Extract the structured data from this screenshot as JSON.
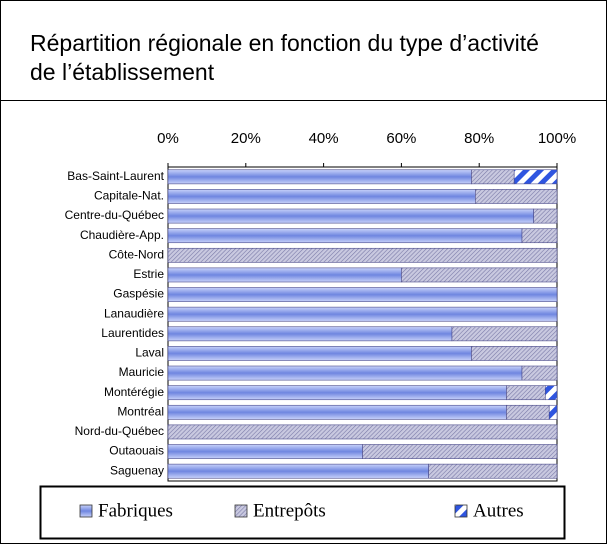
{
  "chart_data": {
    "type": "stacked_bar_horizontal",
    "title": [
      "Répartition régionale en fonction du type d’activité",
      "de l’établissement"
    ],
    "categories": [
      "Bas-Saint-Laurent",
      "Capitale-Nat.",
      "Centre-du-Québec",
      "Chaudière-App.",
      "Côte-Nord",
      "Estrie",
      "Gaspésie",
      "Lanaudière",
      "Laurentides",
      "Laval",
      "Mauricie",
      "Montérégie",
      "Montréal",
      "Nord-du-Québec",
      "Outaouais",
      "Saguenay"
    ],
    "series": [
      {
        "name": "Fabriques",
        "color": "#6f86e0",
        "pattern": "solid",
        "values": [
          78,
          79,
          94,
          91,
          0,
          60,
          100,
          100,
          73,
          78,
          91,
          87,
          87,
          0,
          50,
          67
        ]
      },
      {
        "name": "Entrepôts",
        "color": "#7a7aa8",
        "pattern": "hatch",
        "values": [
          11,
          21,
          6,
          9,
          100,
          40,
          0,
          0,
          27,
          22,
          9,
          10,
          11,
          100,
          50,
          33
        ]
      },
      {
        "name": "Autres",
        "color": "#2f55e0",
        "pattern": "stripes",
        "values": [
          11,
          0,
          0,
          0,
          0,
          0,
          0,
          0,
          0,
          0,
          0,
          3,
          2,
          0,
          0,
          0
        ]
      }
    ],
    "xlim": [
      0,
      100
    ],
    "xticks": [
      {
        "value": 0,
        "label": "0%"
      },
      {
        "value": 20,
        "label": "20%"
      },
      {
        "value": 40,
        "label": "40%"
      },
      {
        "value": 60,
        "label": "60%"
      },
      {
        "value": 80,
        "label": "80%"
      },
      {
        "value": 100,
        "label": "100%"
      }
    ],
    "legend": "bottom"
  }
}
